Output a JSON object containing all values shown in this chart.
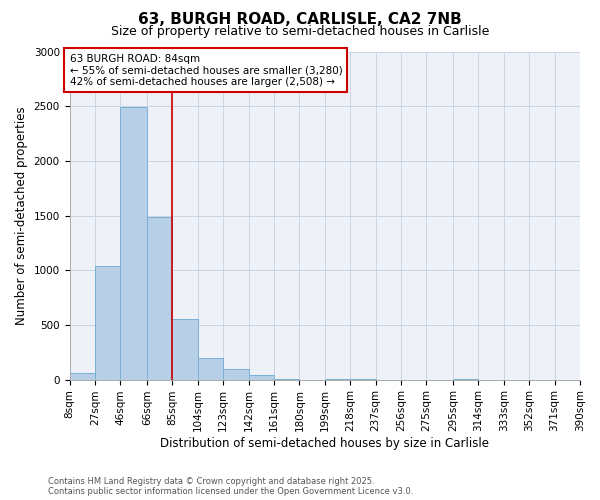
{
  "title": "63, BURGH ROAD, CARLISLE, CA2 7NB",
  "subtitle": "Size of property relative to semi-detached houses in Carlisle",
  "xlabel": "Distribution of semi-detached houses by size in Carlisle",
  "ylabel": "Number of semi-detached properties",
  "annotation_line1": "63 BURGH ROAD: 84sqm",
  "annotation_line2": "← 55% of semi-detached houses are smaller (3,280)",
  "annotation_line3": "42% of semi-detached houses are larger (2,508) →",
  "footer_line1": "Contains HM Land Registry data © Crown copyright and database right 2025.",
  "footer_line2": "Contains public sector information licensed under the Open Government Licence v3.0.",
  "bin_edges": [
    8,
    27,
    46,
    66,
    85,
    104,
    123,
    142,
    161,
    180,
    199,
    218,
    237,
    256,
    275,
    295,
    314,
    333,
    352,
    371,
    390
  ],
  "bin_labels": [
    "8sqm",
    "27sqm",
    "46sqm",
    "66sqm",
    "85sqm",
    "104sqm",
    "123sqm",
    "142sqm",
    "161sqm",
    "180sqm",
    "199sqm",
    "218sqm",
    "237sqm",
    "256sqm",
    "275sqm",
    "295sqm",
    "314sqm",
    "333sqm",
    "352sqm",
    "371sqm",
    "390sqm"
  ],
  "counts": [
    60,
    1040,
    2490,
    1490,
    550,
    195,
    95,
    40,
    10,
    0,
    5,
    2,
    0,
    0,
    0,
    2,
    0,
    0,
    0,
    0
  ],
  "bar_color": "#b8cfe8",
  "bar_edge_color": "#7aafd4",
  "vline_color": "#cc0000",
  "vline_x": 85,
  "ylim": [
    0,
    3000
  ],
  "yticks": [
    0,
    500,
    1000,
    1500,
    2000,
    2500,
    3000
  ],
  "grid_color": "#c8d4e4",
  "bg_color": "#eef2f8",
  "title_fontsize": 11,
  "subtitle_fontsize": 9,
  "xlabel_fontsize": 8.5,
  "ylabel_fontsize": 8.5,
  "annot_fontsize": 7.5,
  "footer_fontsize": 6,
  "tick_fontsize": 7.5
}
